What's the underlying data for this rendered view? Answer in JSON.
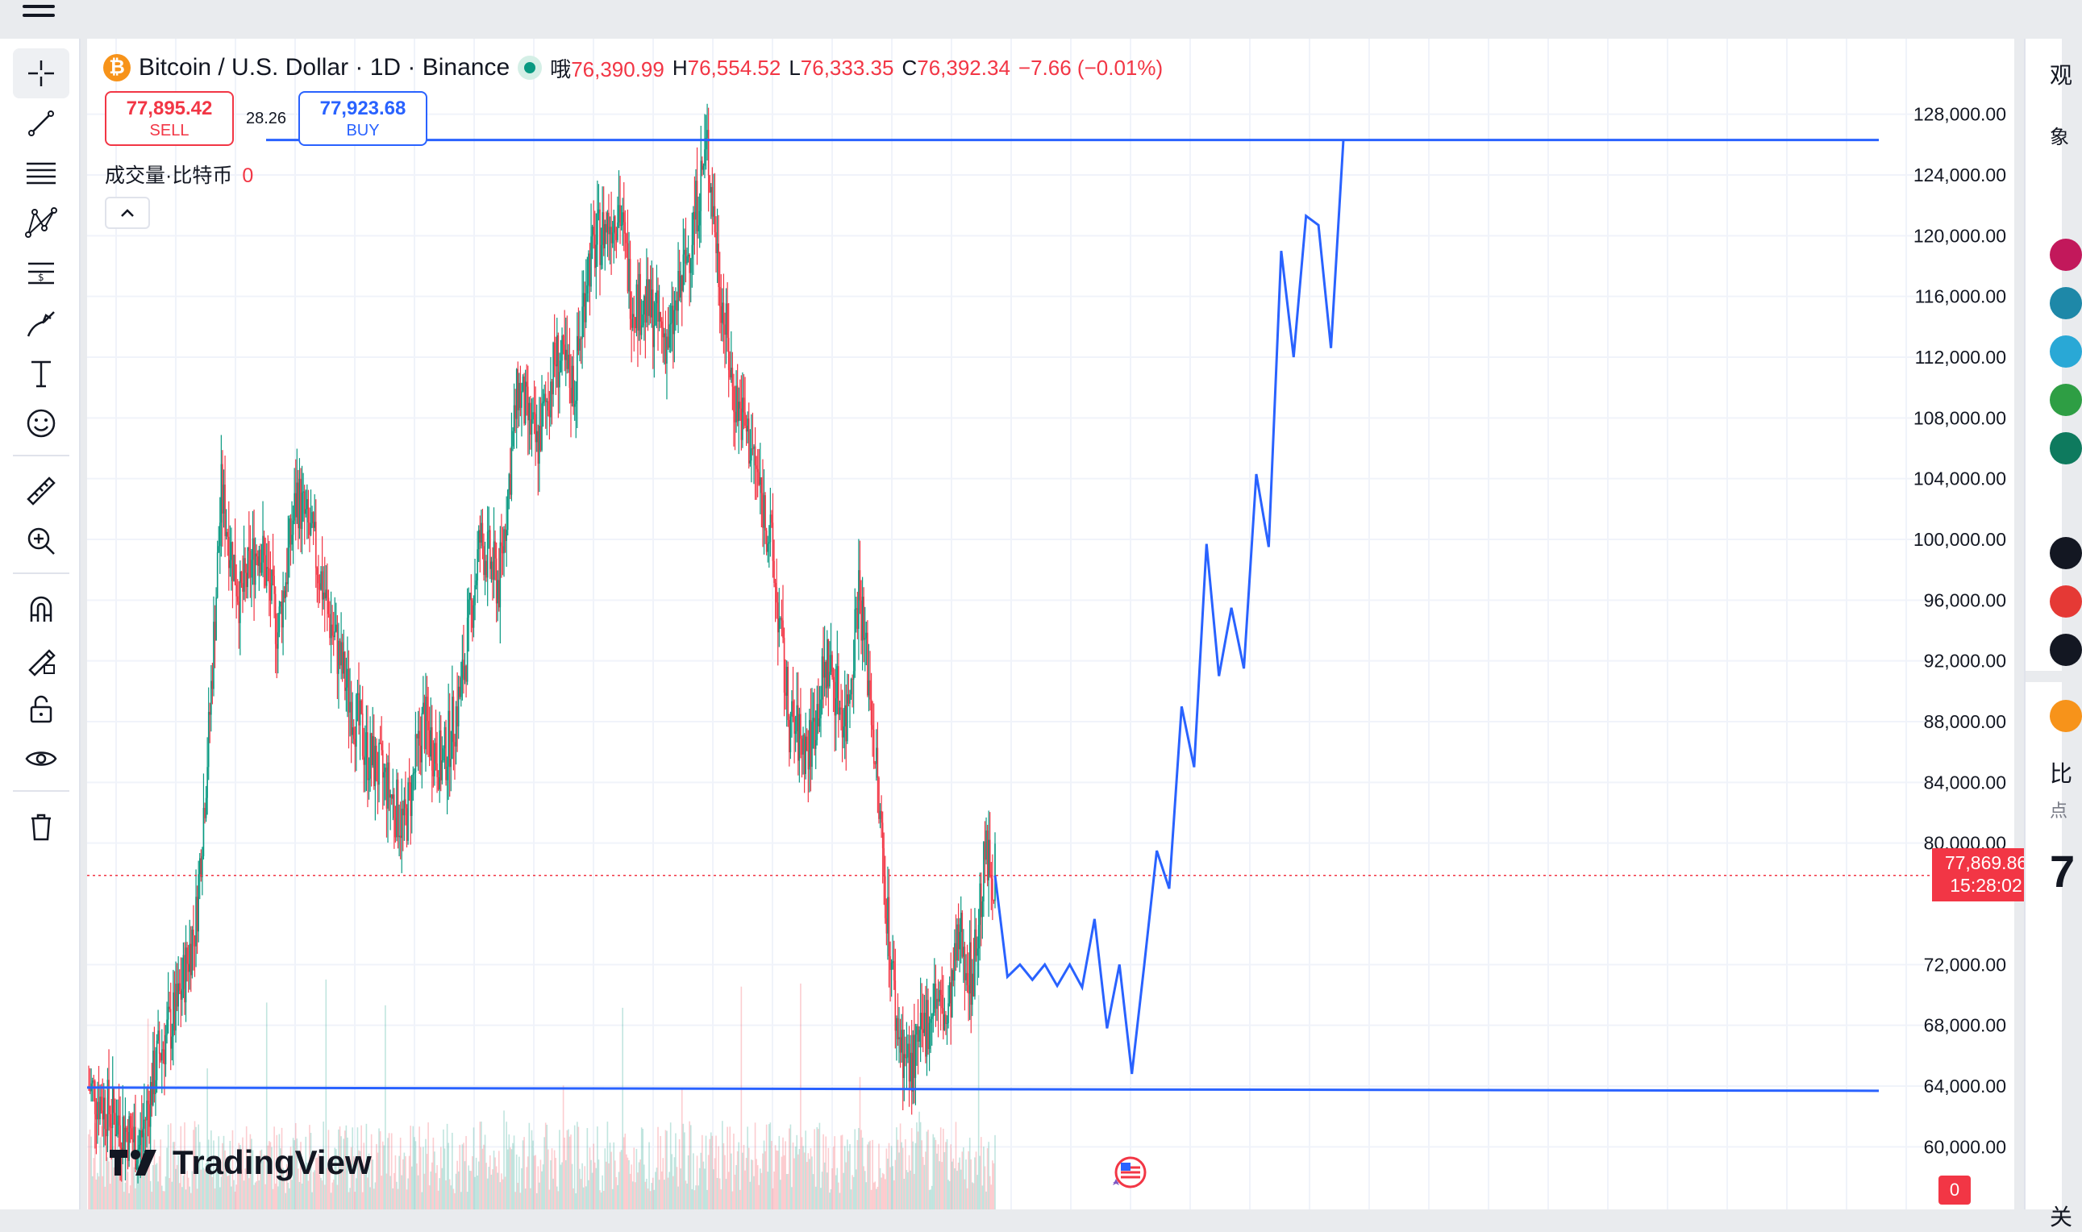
{
  "app": {
    "name": "TradingView"
  },
  "legend": {
    "symbol_title": "Bitcoin / U.S. Dollar · 1D · Binance",
    "logo_glyph": "₿",
    "open_label": "哦",
    "open": "76,390.99",
    "high_label": "H",
    "high": "76,554.52",
    "low_label": "L",
    "low": "76,333.35",
    "close_label": "C",
    "close": "76,392.34",
    "change": "−7.66 (−0.01%)"
  },
  "trade": {
    "sell_price": "77,895.42",
    "sell_label": "SELL",
    "spread": "28.26",
    "buy_price": "77,923.68",
    "buy_label": "BUY"
  },
  "volume": {
    "label": "成交量·比特币",
    "value": "0"
  },
  "price_axis": {
    "labels": [
      "128,000.00",
      "124,000.00",
      "120,000.00",
      "116,000.00",
      "112,000.00",
      "108,000.00",
      "104,000.00",
      "100,000.00",
      "96,000.00",
      "92,000.00",
      "88,000.00",
      "84,000.00",
      "80,000.00",
      "72,000.00",
      "68,000.00",
      "64,000.00",
      "60,000.00"
    ],
    "current_price": "77,869.86",
    "countdown": "15:28:02"
  },
  "alerts": {
    "count": "0"
  },
  "right_panel": {
    "title_glyph": "观",
    "sub_glyph": "象",
    "coin_glyph": "比",
    "point_glyph": "点",
    "price_glyph": "7",
    "bottom_glyph": "关"
  },
  "toolbar": {
    "tools": [
      "crosshair-icon",
      "trend-line-icon",
      "fib-retracement-icon",
      "pattern-icon",
      "long-position-icon",
      "brush-icon",
      "text-icon",
      "emoji-icon",
      "ruler-icon",
      "zoom-in-icon",
      "magnet-icon",
      "lock-drawing-icon",
      "unlock-icon",
      "eye-icon",
      "trash-icon"
    ]
  },
  "colors": {
    "up": "#089981",
    "down": "#f23645",
    "drawing": "#2962ff",
    "background": "#ffffff"
  },
  "chart_data": {
    "type": "candlestick",
    "symbol": "BTCUSD",
    "interval": "1D",
    "exchange": "Binance",
    "ylim": [
      58000,
      130000
    ],
    "last_price": 77869.86,
    "path_points": [
      [
        0,
        64000
      ],
      [
        20,
        62000
      ],
      [
        40,
        60000
      ],
      [
        55,
        66000
      ],
      [
        70,
        69000
      ],
      [
        85,
        75000
      ],
      [
        95,
        87000
      ],
      [
        105,
        103000
      ],
      [
        120,
        96000
      ],
      [
        135,
        100000
      ],
      [
        150,
        94000
      ],
      [
        165,
        103000
      ],
      [
        180,
        99000
      ],
      [
        190,
        95000
      ],
      [
        205,
        90000
      ],
      [
        220,
        86000
      ],
      [
        235,
        84000
      ],
      [
        250,
        81000
      ],
      [
        265,
        88000
      ],
      [
        280,
        85000
      ],
      [
        295,
        90000
      ],
      [
        310,
        100000
      ],
      [
        325,
        97000
      ],
      [
        340,
        110000
      ],
      [
        355,
        106000
      ],
      [
        370,
        112000
      ],
      [
        385,
        110000
      ],
      [
        395,
        118000
      ],
      [
        405,
        120000
      ],
      [
        420,
        122000
      ],
      [
        430,
        116000
      ],
      [
        445,
        115000
      ],
      [
        460,
        113000
      ],
      [
        475,
        119000
      ],
      [
        490,
        126000
      ],
      [
        500,
        117000
      ],
      [
        510,
        110000
      ],
      [
        525,
        106000
      ],
      [
        540,
        100000
      ],
      [
        555,
        88000
      ],
      [
        570,
        86000
      ],
      [
        585,
        92000
      ],
      [
        600,
        88000
      ],
      [
        610,
        97000
      ],
      [
        620,
        89000
      ],
      [
        630,
        78000
      ],
      [
        640,
        68000
      ],
      [
        650,
        65000
      ],
      [
        660,
        67000
      ],
      [
        670,
        70000
      ],
      [
        680,
        68000
      ],
      [
        690,
        74000
      ],
      [
        700,
        71000
      ],
      [
        710,
        79000
      ],
      [
        718,
        78000
      ]
    ],
    "drawings": {
      "resistance_line": 126300,
      "support_line": 63900,
      "projection": [
        [
          0,
          77869.86
        ],
        [
          1,
          71200
        ],
        [
          2,
          72000
        ],
        [
          3,
          71000
        ],
        [
          4,
          72000
        ],
        [
          5,
          70600
        ],
        [
          6,
          72000
        ],
        [
          7,
          70500
        ],
        [
          8,
          75000
        ],
        [
          9,
          67800
        ],
        [
          10,
          72000
        ],
        [
          11,
          64800
        ],
        [
          12,
          72000
        ],
        [
          13,
          79500
        ],
        [
          14,
          77000
        ],
        [
          15,
          89000
        ],
        [
          16,
          85000
        ],
        [
          17,
          99700
        ],
        [
          18,
          91000
        ],
        [
          19,
          95500
        ],
        [
          20,
          91500
        ],
        [
          21,
          104300
        ],
        [
          22,
          99500
        ],
        [
          23,
          119000
        ],
        [
          24,
          112000
        ],
        [
          25,
          121300
        ],
        [
          26,
          120700
        ],
        [
          27,
          112600
        ],
        [
          28,
          126300
        ]
      ]
    },
    "price_ticks": [
      128000,
      124000,
      120000,
      116000,
      112000,
      108000,
      104000,
      100000,
      96000,
      92000,
      88000,
      84000,
      80000,
      72000,
      68000,
      64000,
      60000
    ]
  }
}
